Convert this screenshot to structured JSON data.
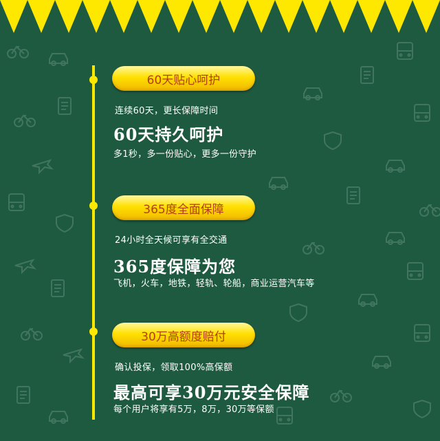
{
  "sections": [
    {
      "badge": "60天贴心呵护",
      "subtitle": "连续60天，更长保障时间",
      "headline": "60天持久呵护",
      "description": "多1秒，多一份贴心，更多一份守护"
    },
    {
      "badge": "365度全面保障",
      "subtitle": "24小时全天候可享有全交通",
      "headline": "365度保障为您",
      "description": "飞机，火车，地铁，轻轨、轮船，商业运营汽车等"
    },
    {
      "badge": "30万高额度赔付",
      "subtitle": "确认投保，领取100%高保额",
      "headline": "最高可享30万元安全保障",
      "description": "每个用户将享有5万，8万，30万等保额"
    }
  ],
  "colors": {
    "background": "#1e5a40",
    "accent_yellow": "#ffe800",
    "badge_text": "#b04010",
    "text": "#ffffff"
  },
  "icons": [
    "bicycle-icon",
    "car-icon",
    "bus-icon",
    "train-icon",
    "airplane-icon",
    "ship-icon",
    "shield-icon",
    "document-icon"
  ]
}
